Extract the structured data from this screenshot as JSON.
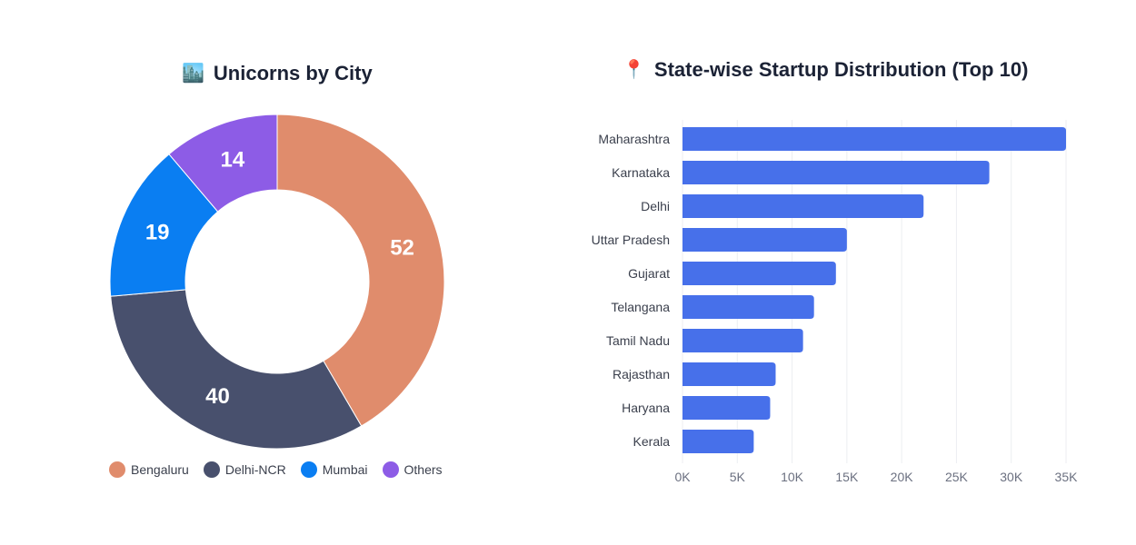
{
  "chart_data": [
    {
      "type": "pie",
      "title": "Unicorns by City",
      "title_icon": "cityscape-icon",
      "categories": [
        "Bengaluru",
        "Delhi-NCR",
        "Mumbai",
        "Others"
      ],
      "values": [
        52,
        40,
        19,
        14
      ],
      "colors": [
        "#e08c6c",
        "#48506d",
        "#0a7ef2",
        "#8d5ce6"
      ],
      "legend": "bottom"
    },
    {
      "type": "bar",
      "orientation": "horizontal",
      "title": "State-wise Startup Distribution (Top 10)",
      "title_icon": "round-pushpin-icon",
      "categories": [
        "Maharashtra",
        "Karnataka",
        "Delhi",
        "Uttar Pradesh",
        "Gujarat",
        "Telangana",
        "Tamil Nadu",
        "Rajasthan",
        "Haryana",
        "Kerala"
      ],
      "values": [
        35000,
        28000,
        22000,
        15000,
        14000,
        12000,
        11000,
        8500,
        8000,
        6500
      ],
      "xlim": [
        0,
        35000
      ],
      "x_ticks": [
        0,
        5000,
        10000,
        15000,
        20000,
        25000,
        30000,
        35000
      ],
      "x_tick_labels": [
        "0K",
        "5K",
        "10K",
        "15K",
        "20K",
        "25K",
        "30K",
        "35K"
      ],
      "color": "#4770ea",
      "grid": true
    }
  ]
}
